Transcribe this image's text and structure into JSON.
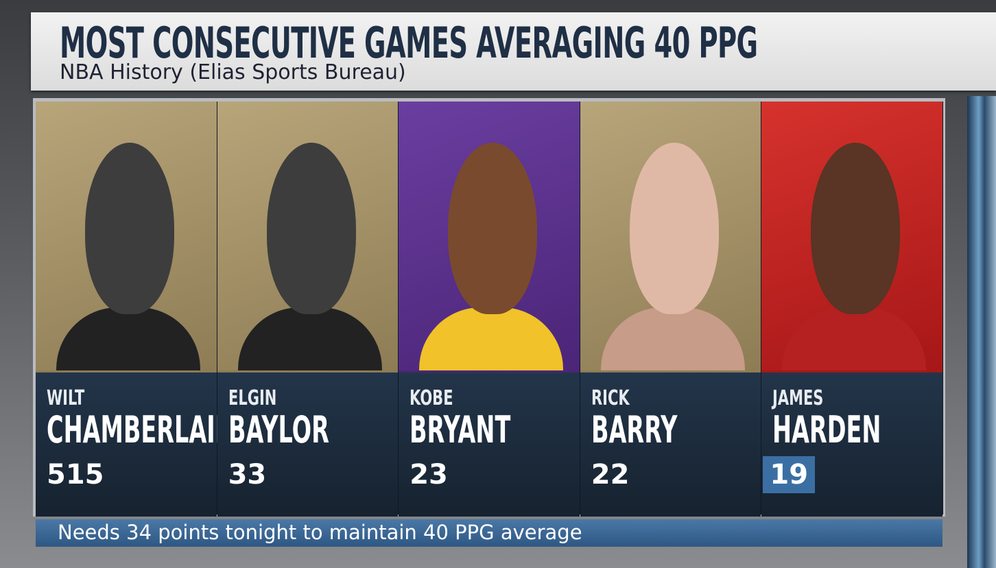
{
  "header": {
    "title": "MOST CONSECUTIVE GAMES AVERAGING 40 PPG",
    "subtitle": "NBA History (Elias Sports Bureau)"
  },
  "players": [
    {
      "first": "WILT",
      "last": "CHAMBERLAIN",
      "games": 515
    },
    {
      "first": "ELGIN",
      "last": "BAYLOR",
      "games": 33
    },
    {
      "first": "KOBE",
      "last": "BRYANT",
      "games": 23
    },
    {
      "first": "RICK",
      "last": "BARRY",
      "games": 22
    },
    {
      "first": "JAMES",
      "last": "HARDEN",
      "games": 19
    }
  ],
  "footer": "Needs 34 points tonight to maintain 40 PPG average"
}
